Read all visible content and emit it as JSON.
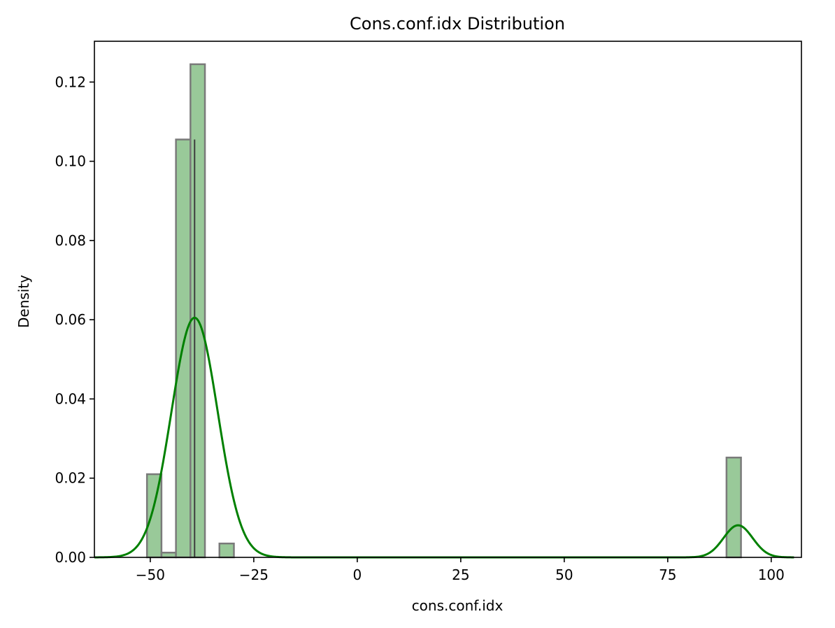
{
  "chart_data": {
    "type": "bar",
    "title": "Cons.conf.idx Distribution",
    "xlabel": "cons.conf.idx",
    "ylabel": "Density",
    "xlim": [
      -63.5,
      107.3
    ],
    "ylim": [
      0,
      0.1303
    ],
    "x_ticks": [
      -50,
      -25,
      0,
      25,
      50,
      75,
      100
    ],
    "x_tick_labels": [
      "−50",
      "−25",
      "0",
      "25",
      "50",
      "75",
      "100"
    ],
    "y_ticks": [
      0,
      0.02,
      0.04,
      0.06,
      0.08,
      0.1,
      0.12
    ],
    "y_tick_labels": [
      "0.00",
      "0.02",
      "0.04",
      "0.06",
      "0.08",
      "0.10",
      "0.12"
    ],
    "grid": false,
    "histogram": {
      "bin_edges": [
        -50.8,
        -47.3,
        -43.8,
        -40.3,
        -36.8,
        -33.3,
        -29.8,
        -26.3,
        -22.8,
        -19.3,
        -15.8,
        -12.3,
        -8.8,
        -5.3,
        -1.8,
        1.7,
        5.2,
        8.7,
        12.2,
        15.7,
        19.2,
        22.7,
        26.2,
        29.7,
        33.2,
        36.7,
        40.2,
        43.7,
        47.2,
        50.7,
        54.2,
        57.7,
        61.2,
        64.7,
        68.2,
        71.7,
        75.2,
        78.7,
        82.2,
        85.7,
        89.2,
        92.7
      ],
      "values": [
        0.021,
        0.0012,
        0.1055,
        0.1245,
        0.0,
        0.0035,
        0.0,
        0.0,
        0.0,
        0.0,
        0.0,
        0.0,
        0.0,
        0.0,
        0.0,
        0.0,
        0.0,
        0.0,
        0.0,
        0.0,
        0.0,
        0.0,
        0.0,
        0.0,
        0.0,
        0.0,
        0.0,
        0.0,
        0.0,
        0.0,
        0.0,
        0.0,
        0.0,
        0.0,
        0.0,
        0.0,
        0.0,
        0.0,
        0.0,
        0.0,
        0.0252
      ],
      "fill_color": "#99c999",
      "edge_color": "#7a7a7a"
    },
    "kde": {
      "x_range": [
        -63.5,
        105.5
      ],
      "components": [
        {
          "mean": -39.3,
          "sd": 5.6,
          "peak": 0.0605
        },
        {
          "mean": 92.0,
          "sd": 3.5,
          "peak": 0.0081
        }
      ],
      "color": "#008000"
    },
    "divider_x": -39.3
  }
}
